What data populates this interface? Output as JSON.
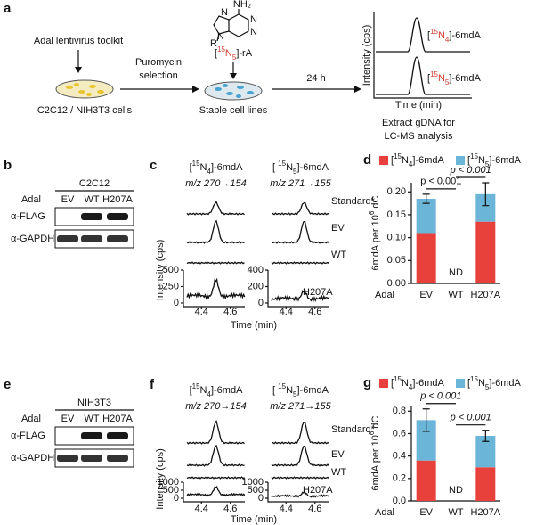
{
  "panel_labels": [
    "a",
    "b",
    "c",
    "d",
    "e",
    "f",
    "g"
  ],
  "scheme": {
    "toolkit": "Adal lentivirus toolkit",
    "cells": "C2C12 / NIH3T3 cells",
    "selection": [
      "Puromycin",
      "selection"
    ],
    "tracer": {
      "open": "[",
      "mass": "15",
      "atom": "N",
      "count": "5",
      "close": "]-rA"
    },
    "atoms": [
      "NH₂",
      "N",
      "N",
      "N",
      "N",
      "R"
    ],
    "stable": "Stable cell lines",
    "time": "24 h",
    "traces": [
      {
        "open": "[",
        "mass": "15",
        "atom": "N",
        "count": "4",
        "close": "]-6mdA"
      },
      {
        "open": "[",
        "mass": "15",
        "atom": "N",
        "count": "5",
        "close": "]-6mdA"
      }
    ],
    "ylabel": "Intensity (cps)",
    "xlabel": "Time (min)",
    "extract": [
      "Extract gDNA for",
      "LC-MS analysis"
    ]
  },
  "blots": [
    {
      "cell_line": "C2C12",
      "row_title": "Adal",
      "lanes": [
        "EV",
        "WT",
        "H207A"
      ],
      "antibodies": [
        "α-FLAG",
        "α-GAPDH"
      ]
    },
    {
      "cell_line": "NIH3T3",
      "row_title": "Adal",
      "lanes": [
        "EV",
        "WT",
        "H207A"
      ],
      "antibodies": [
        "α-FLAG",
        "α-GAPDH"
      ]
    }
  ],
  "chromatograms": [
    {
      "columns": [
        {
          "title": {
            "open": "[",
            "mass": "15",
            "atom": "N",
            "count": "4",
            "close": "]-6mdA"
          },
          "transition": "m/z 270→154",
          "ylim": [
            0,
            500
          ],
          "yticks": [
            0,
            250,
            500
          ]
        },
        {
          "title": {
            "open": "[ ",
            "mass": "15",
            "atom": "N",
            "count": "5",
            "close": "]-6mdA"
          },
          "transition": "m/z 271→155",
          "ylim": [
            0,
            400
          ],
          "yticks": [
            0,
            200,
            400
          ]
        }
      ],
      "rows": [
        "Standard*",
        "EV",
        "WT",
        "H207A"
      ],
      "ylabel": "Intensity (cps)",
      "xlabel": "Time (min)",
      "xlim": [
        4.3,
        4.7
      ],
      "xticks": [
        4.4,
        4.6
      ]
    },
    {
      "columns": [
        {
          "title": {
            "open": "[",
            "mass": "15",
            "atom": "N",
            "count": "4",
            "close": "]-6mdA"
          },
          "transition": "m/z 270→154",
          "ylim": [
            0,
            1000
          ],
          "yticks": [
            0,
            500,
            1000
          ]
        },
        {
          "title": {
            "open": "[ ",
            "mass": "15",
            "atom": "N",
            "count": "5",
            "close": "]-6mdA"
          },
          "transition": "m/z 271→155",
          "ylim": [
            0,
            1000
          ],
          "yticks": [
            0,
            500,
            1000
          ]
        }
      ],
      "rows": [
        "Standard*",
        "EV",
        "WT",
        "H207A"
      ],
      "ylabel": "Intensity (cps)",
      "xlabel": "Time (min)",
      "xlim": [
        4.3,
        4.7
      ],
      "xticks": [
        4.4,
        4.6
      ]
    }
  ],
  "chart_data": [
    {
      "type": "stacked_bar",
      "categories": [
        "EV",
        "WT",
        "H207A"
      ],
      "category_title": "Adal",
      "ylabel": {
        "text": "6mdA per 10",
        "sup": "6",
        "end": " dC"
      },
      "series": [
        {
          "name": {
            "open": "[",
            "mass": "15",
            "atom": "N",
            "count": "4",
            "close": "]-6mdA"
          },
          "color": "#e8413c",
          "values": [
            0.11,
            null,
            0.135
          ]
        },
        {
          "name": {
            "open": "[",
            "mass": "15",
            "atom": "N",
            "count": "5",
            "close": "]-6mdA"
          },
          "color": "#6bb6d8",
          "values": [
            0.075,
            null,
            0.06
          ],
          "errors": [
            0.01,
            null,
            0.025
          ]
        }
      ],
      "ylim": [
        0,
        0.22
      ],
      "yticks": [
        {
          "value": 0,
          "label": "0.00"
        },
        {
          "value": 0.05,
          "label": "0.05"
        },
        {
          "value": 0.1,
          "label": "0.10"
        },
        {
          "value": 0.15,
          "label": "0.15"
        },
        {
          "value": 0.2,
          "label": "0.20"
        }
      ],
      "annotations": [
        {
          "text": "p < 0.001",
          "between": [
            0,
            1
          ],
          "style": "normal"
        },
        {
          "text": "p < 0.001",
          "between": [
            1,
            2
          ],
          "style": "italic"
        },
        {
          "text": "ND",
          "category": 1
        }
      ],
      "legend": "top"
    },
    {
      "type": "stacked_bar",
      "categories": [
        "EV",
        "WT",
        "H207A"
      ],
      "category_title": "Adal",
      "ylabel": {
        "text": "6mdA per 10",
        "sup": "6",
        "end": " dC"
      },
      "series": [
        {
          "name": {
            "open": "[",
            "mass": "15",
            "atom": "N",
            "count": "4",
            "close": "]-6mdA"
          },
          "color": "#e8413c",
          "values": [
            0.36,
            null,
            0.3
          ]
        },
        {
          "name": {
            "open": "[",
            "mass": "15",
            "atom": "N",
            "count": "5",
            "close": "]-6mdA"
          },
          "color": "#6bb6d8",
          "values": [
            0.36,
            null,
            0.28
          ],
          "errors": [
            0.1,
            null,
            0.05
          ]
        }
      ],
      "ylim": [
        0,
        0.85
      ],
      "yticks": [
        {
          "value": 0,
          "label": "0.0"
        },
        {
          "value": 0.2,
          "label": "0.2"
        },
        {
          "value": 0.4,
          "label": "0.4"
        },
        {
          "value": 0.6,
          "label": "0.6"
        },
        {
          "value": 0.8,
          "label": "0.8"
        }
      ],
      "annotations": [
        {
          "text": "p < 0.001",
          "between": [
            0,
            1
          ],
          "style": "italic"
        },
        {
          "text": "p < 0.001",
          "between": [
            1,
            2
          ],
          "style": "italic"
        },
        {
          "text": "ND",
          "category": 1
        }
      ],
      "legend": "top"
    }
  ]
}
